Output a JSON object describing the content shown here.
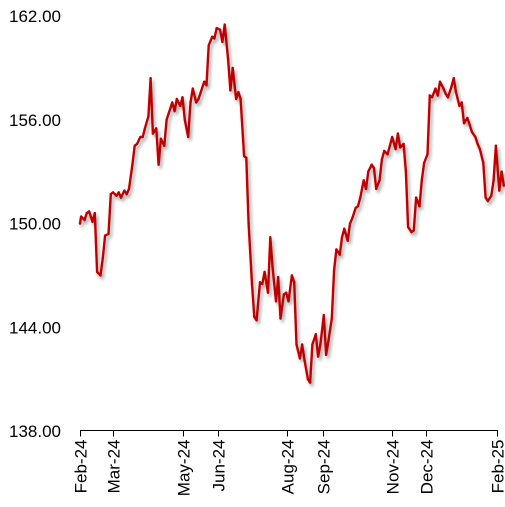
{
  "chart_data": {
    "type": "line",
    "title": "",
    "xlabel": "",
    "ylabel": "",
    "ylim": [
      138,
      162
    ],
    "yticks": [
      "138.00",
      "144.00",
      "150.00",
      "156.00",
      "162.00"
    ],
    "yticks_values": [
      138,
      144,
      150,
      156,
      162
    ],
    "x_range": [
      "2024-02-01",
      "2025-02-01"
    ],
    "xticks": [
      "Feb-24",
      "Mar-24",
      "May-24",
      "Jun-24",
      "Aug-24",
      "Sep-24",
      "Nov-24",
      "Dec-24",
      "Feb-25"
    ],
    "xticks_dates": [
      "2024-02-01",
      "2024-03-01",
      "2024-05-01",
      "2024-06-01",
      "2024-08-01",
      "2024-09-01",
      "2024-11-01",
      "2024-12-01",
      "2025-02-01"
    ],
    "grid": false,
    "legend": "none",
    "line_color": "#c00000",
    "series": [
      {
        "x": [
          "2024-02-01",
          "2024-02-02",
          "2024-02-05",
          "2024-02-07",
          "2024-02-09",
          "2024-02-12",
          "2024-02-14",
          "2024-02-16",
          "2024-02-19",
          "2024-02-21",
          "2024-02-23",
          "2024-02-26",
          "2024-02-28",
          "2024-03-01",
          "2024-03-04",
          "2024-03-06",
          "2024-03-08",
          "2024-03-11",
          "2024-03-13",
          "2024-03-15",
          "2024-03-18",
          "2024-03-20",
          "2024-03-22",
          "2024-03-25",
          "2024-03-27",
          "2024-03-29",
          "2024-04-01",
          "2024-04-03",
          "2024-04-05",
          "2024-04-08",
          "2024-04-10",
          "2024-04-12",
          "2024-04-15",
          "2024-04-17",
          "2024-04-19",
          "2024-04-22",
          "2024-04-24",
          "2024-04-26",
          "2024-04-29",
          "2024-05-01",
          "2024-05-03",
          "2024-05-06",
          "2024-05-08",
          "2024-05-10",
          "2024-05-13",
          "2024-05-15",
          "2024-05-17",
          "2024-05-20",
          "2024-05-22",
          "2024-05-24",
          "2024-05-27",
          "2024-05-29",
          "2024-05-31",
          "2024-06-03",
          "2024-06-05",
          "2024-06-07",
          "2024-06-10",
          "2024-06-12",
          "2024-06-14",
          "2024-06-17",
          "2024-06-19",
          "2024-06-21",
          "2024-06-24",
          "2024-06-26",
          "2024-06-28",
          "2024-07-01",
          "2024-07-03",
          "2024-07-05",
          "2024-07-08",
          "2024-07-10",
          "2024-07-12",
          "2024-07-15",
          "2024-07-17",
          "2024-07-19",
          "2024-07-22",
          "2024-07-24",
          "2024-07-26",
          "2024-07-29",
          "2024-07-31",
          "2024-08-02",
          "2024-08-05",
          "2024-08-07",
          "2024-08-09",
          "2024-08-12",
          "2024-08-14",
          "2024-08-16",
          "2024-08-19",
          "2024-08-21",
          "2024-08-23",
          "2024-08-26",
          "2024-08-28",
          "2024-08-30",
          "2024-09-02",
          "2024-09-04",
          "2024-09-06",
          "2024-09-09",
          "2024-09-11",
          "2024-09-13",
          "2024-09-16",
          "2024-09-18",
          "2024-09-20",
          "2024-09-23",
          "2024-09-25",
          "2024-09-27",
          "2024-09-30",
          "2024-10-02",
          "2024-10-04",
          "2024-10-07",
          "2024-10-09",
          "2024-10-11",
          "2024-10-14",
          "2024-10-16",
          "2024-10-18",
          "2024-10-21",
          "2024-10-23",
          "2024-10-25",
          "2024-10-28",
          "2024-10-30",
          "2024-11-01",
          "2024-11-04",
          "2024-11-06",
          "2024-11-08",
          "2024-11-11",
          "2024-11-13",
          "2024-11-15",
          "2024-11-18",
          "2024-11-20",
          "2024-11-22",
          "2024-11-25",
          "2024-11-27",
          "2024-11-29",
          "2024-12-02",
          "2024-12-04",
          "2024-12-06",
          "2024-12-09",
          "2024-12-11",
          "2024-12-13",
          "2024-12-16",
          "2024-12-18",
          "2024-12-20",
          "2024-12-23",
          "2024-12-25",
          "2024-12-27",
          "2024-12-30",
          "2025-01-01",
          "2025-01-03",
          "2025-01-06",
          "2025-01-08",
          "2025-01-10",
          "2025-01-13",
          "2025-01-15",
          "2025-01-17",
          "2025-01-20",
          "2025-01-22",
          "2025-01-24",
          "2025-01-27",
          "2025-01-29",
          "2025-01-31",
          "2025-02-03",
          "2025-02-05",
          "2025-02-07"
        ],
        "y": [
          150.0,
          150.4,
          150.2,
          150.6,
          150.7,
          150.1,
          150.6,
          147.2,
          147.0,
          148.0,
          149.3,
          149.4,
          151.7,
          151.8,
          151.6,
          151.8,
          151.5,
          151.9,
          151.7,
          152.0,
          153.4,
          154.5,
          154.6,
          155.0,
          155.0,
          155.5,
          156.2,
          158.4,
          155.2,
          155.5,
          153.4,
          154.9,
          154.5,
          156.0,
          156.4,
          157.0,
          156.5,
          157.2,
          156.8,
          157.3,
          156.0,
          155.0,
          157.0,
          157.8,
          157.0,
          157.2,
          157.6,
          158.2,
          158.0,
          160.3,
          160.8,
          160.7,
          161.3,
          161.2,
          160.5,
          161.5,
          159.5,
          157.7,
          159.0,
          157.2,
          157.6,
          157.2,
          153.9,
          153.8,
          150.0,
          146.5,
          144.6,
          144.4,
          146.6,
          146.5,
          147.2,
          146.0,
          149.2,
          147.5,
          145.5,
          146.9,
          144.5,
          145.9,
          146.0,
          145.5,
          147.0,
          146.6,
          143.0,
          142.2,
          143.0,
          142.1,
          141.0,
          140.8,
          143.0,
          143.6,
          142.3,
          143.0,
          144.7,
          142.4,
          143.2,
          144.5,
          147.3,
          148.5,
          148.2,
          149.2,
          149.7,
          149.0,
          150.0,
          150.3,
          150.9,
          151.0,
          151.5,
          152.5,
          152.0,
          153.0,
          153.4,
          153.2,
          152.0,
          152.5,
          153.7,
          154.2,
          154.0,
          154.5,
          155.0,
          154.3,
          155.2,
          154.4,
          154.6,
          153.0,
          149.8,
          149.5,
          149.6,
          151.5,
          151.0,
          152.5,
          153.5,
          154.0,
          157.4,
          157.3,
          157.8,
          157.4,
          158.2,
          157.8,
          157.5,
          157.3,
          157.9,
          158.4,
          157.6,
          156.8,
          157.0,
          155.8,
          156.1,
          155.7,
          155.3,
          155.0,
          154.6,
          154.3,
          153.5,
          151.5,
          151.3,
          151.6,
          152.5,
          154.5,
          151.9,
          153.0,
          152.2
        ]
      }
    ]
  }
}
